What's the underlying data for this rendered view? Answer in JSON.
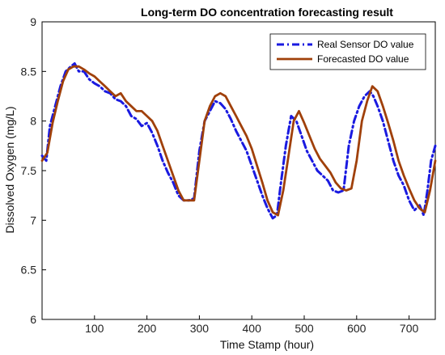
{
  "chart_data": {
    "type": "line",
    "title": "Long-term DO concentration forecasting result",
    "xlabel": "Time Stamp (hour)",
    "ylabel": "Dissolved Oxygen (mg/L)",
    "xlim": [
      0,
      750
    ],
    "ylim": [
      6,
      9
    ],
    "xticks": [
      100,
      200,
      300,
      400,
      500,
      600,
      700
    ],
    "yticks": [
      6,
      6.5,
      7,
      7.5,
      8,
      8.5,
      9
    ],
    "grid": false,
    "legend_position": "top-right",
    "series": [
      {
        "name": "Real Sensor DO value",
        "color": "#1a1ae0",
        "style": "dash-dot",
        "x": [
          0,
          8,
          15,
          25,
          35,
          45,
          55,
          62,
          70,
          80,
          90,
          100,
          110,
          120,
          130,
          140,
          150,
          160,
          170,
          180,
          190,
          200,
          210,
          220,
          230,
          240,
          250,
          260,
          270,
          280,
          290,
          300,
          310,
          320,
          330,
          340,
          350,
          360,
          370,
          380,
          390,
          400,
          410,
          420,
          430,
          440,
          448,
          455,
          465,
          475,
          485,
          495,
          505,
          515,
          525,
          535,
          545,
          555,
          565,
          575,
          585,
          595,
          605,
          615,
          625,
          632,
          640,
          650,
          660,
          670,
          680,
          690,
          700,
          710,
          720,
          728,
          735,
          742,
          750
        ],
        "values": [
          7.65,
          7.6,
          7.95,
          8.15,
          8.35,
          8.5,
          8.55,
          8.58,
          8.5,
          8.5,
          8.42,
          8.38,
          8.35,
          8.3,
          8.28,
          8.22,
          8.2,
          8.15,
          8.05,
          8.02,
          7.95,
          7.98,
          7.88,
          7.75,
          7.6,
          7.48,
          7.38,
          7.25,
          7.2,
          7.2,
          7.22,
          7.7,
          8.0,
          8.1,
          8.2,
          8.18,
          8.12,
          8.02,
          7.9,
          7.8,
          7.7,
          7.55,
          7.4,
          7.25,
          7.12,
          7.02,
          7.05,
          7.35,
          7.75,
          8.05,
          8.0,
          7.85,
          7.7,
          7.6,
          7.5,
          7.45,
          7.4,
          7.3,
          7.28,
          7.3,
          7.75,
          8.0,
          8.15,
          8.25,
          8.3,
          8.25,
          8.15,
          8.0,
          7.8,
          7.6,
          7.45,
          7.35,
          7.2,
          7.1,
          7.15,
          7.05,
          7.3,
          7.6,
          7.75
        ]
      },
      {
        "name": "Forecasted DO value",
        "color": "#a0400a",
        "style": "solid",
        "x": [
          0,
          10,
          20,
          30,
          40,
          50,
          60,
          70,
          80,
          90,
          100,
          110,
          120,
          130,
          140,
          150,
          160,
          170,
          180,
          190,
          200,
          210,
          220,
          230,
          240,
          250,
          260,
          270,
          280,
          290,
          300,
          310,
          320,
          330,
          340,
          350,
          360,
          370,
          380,
          390,
          400,
          410,
          420,
          430,
          440,
          450,
          460,
          470,
          480,
          490,
          500,
          510,
          520,
          530,
          540,
          550,
          560,
          570,
          580,
          590,
          600,
          610,
          620,
          630,
          640,
          650,
          660,
          670,
          680,
          690,
          700,
          710,
          720,
          730,
          740,
          750
        ],
        "values": [
          7.6,
          7.68,
          7.98,
          8.2,
          8.4,
          8.52,
          8.55,
          8.55,
          8.52,
          8.48,
          8.45,
          8.4,
          8.35,
          8.3,
          8.25,
          8.28,
          8.2,
          8.15,
          8.1,
          8.1,
          8.05,
          8.0,
          7.9,
          7.75,
          7.6,
          7.45,
          7.3,
          7.2,
          7.2,
          7.2,
          7.6,
          8.0,
          8.15,
          8.25,
          8.28,
          8.25,
          8.15,
          8.05,
          7.95,
          7.85,
          7.72,
          7.55,
          7.38,
          7.2,
          7.08,
          7.05,
          7.3,
          7.65,
          8.0,
          8.1,
          7.98,
          7.85,
          7.72,
          7.62,
          7.55,
          7.48,
          7.38,
          7.32,
          7.3,
          7.32,
          7.6,
          8.0,
          8.2,
          8.35,
          8.3,
          8.15,
          7.98,
          7.8,
          7.6,
          7.45,
          7.32,
          7.2,
          7.12,
          7.08,
          7.3,
          7.6
        ]
      }
    ]
  }
}
